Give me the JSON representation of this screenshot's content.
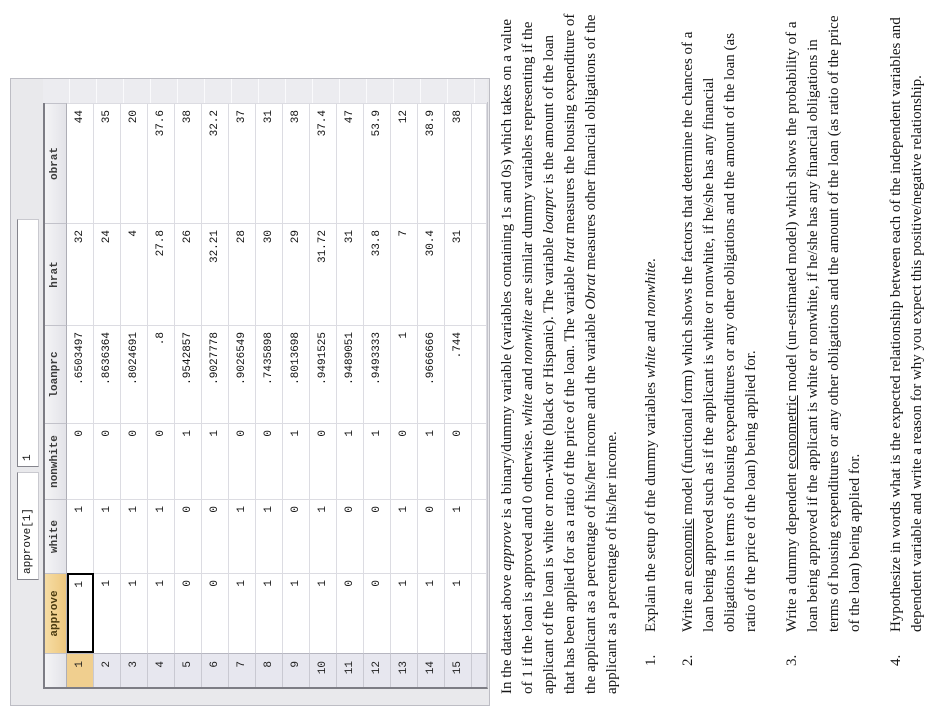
{
  "editor": {
    "cell_ref": "approve[1]",
    "cell_value": "1",
    "columns": [
      "approve",
      "white",
      "nonwhite",
      "loanprc",
      "hrat",
      "obrat"
    ],
    "rows": [
      {
        "n": "1",
        "cells": [
          "1",
          "1",
          "0",
          ".6503497",
          "32",
          "44"
        ]
      },
      {
        "n": "2",
        "cells": [
          "1",
          "1",
          "0",
          ".8636364",
          "24",
          "35"
        ]
      },
      {
        "n": "3",
        "cells": [
          "1",
          "1",
          "0",
          ".8024691",
          "4",
          "20"
        ]
      },
      {
        "n": "4",
        "cells": [
          "1",
          "1",
          "0",
          ".8",
          "27.8",
          "37.6"
        ]
      },
      {
        "n": "5",
        "cells": [
          "0",
          "0",
          "1",
          ".9542857",
          "26",
          "38"
        ]
      },
      {
        "n": "6",
        "cells": [
          "0",
          "0",
          "1",
          ".9027778",
          "32.21",
          "32.2"
        ]
      },
      {
        "n": "7",
        "cells": [
          "1",
          "1",
          "0",
          ".9026549",
          "28",
          "37"
        ]
      },
      {
        "n": "8",
        "cells": [
          "1",
          "1",
          "0",
          ".7435898",
          "30",
          "31"
        ]
      },
      {
        "n": "9",
        "cells": [
          "1",
          "0",
          "1",
          ".8013698",
          "29",
          "38"
        ]
      },
      {
        "n": "10",
        "cells": [
          "1",
          "1",
          "0",
          ".9491525",
          "31.72",
          "37.4"
        ]
      },
      {
        "n": "11",
        "cells": [
          "0",
          "0",
          "1",
          ".9489051",
          "31",
          "47"
        ]
      },
      {
        "n": "12",
        "cells": [
          "0",
          "0",
          "1",
          ".9493333",
          "33.8",
          "53.9"
        ]
      },
      {
        "n": "13",
        "cells": [
          "1",
          "1",
          "0",
          "1",
          "7",
          "12"
        ]
      },
      {
        "n": "14",
        "cells": [
          "1",
          "0",
          "1",
          ".9666666",
          "30.4",
          "38.9"
        ]
      },
      {
        "n": "15",
        "cells": [
          "1",
          "1",
          "0",
          ".744",
          "31",
          "38"
        ]
      }
    ],
    "colors": {
      "selection_highlight": "#f0cf8f",
      "gutter_background": "#e7e7ef",
      "grid_line": "#dcdce2"
    }
  },
  "document": {
    "intro": [
      {
        "t": "In the dataset above "
      },
      {
        "t": "approve",
        "i": true
      },
      {
        "t": " is a binary/dummy variable (variables containing 1s and 0s) which takes on a value of 1 if the loan is approved and 0 otherwise. "
      },
      {
        "t": "white",
        "i": true
      },
      {
        "t": " and "
      },
      {
        "t": "nonwhite",
        "i": true
      },
      {
        "t": " are similar dummy variables representing if the applicant of the loan is white or non-white (black or Hispanic). The variable "
      },
      {
        "t": "loanprc",
        "i": true
      },
      {
        "t": " is the amount of the loan that has been applied for as a ratio of the price of the loan. The variable "
      },
      {
        "t": "hrat",
        "i": true
      },
      {
        "t": " measures the housing expenditure of the applicant as a percentage of his/her income and the variable "
      },
      {
        "t": "Obrat",
        "i": true
      },
      {
        "t": " measures other financial obligations of the applicant as a percentage of his/her income."
      }
    ],
    "items": [
      {
        "number": "1.",
        "runs": [
          {
            "t": "Explain the setup of the dummy variables "
          },
          {
            "t": "white",
            "i": true
          },
          {
            "t": " and "
          },
          {
            "t": "nonwhite.",
            "i": true
          }
        ]
      },
      {
        "number": "2.",
        "runs": [
          {
            "t": "Write an "
          },
          {
            "t": "economic",
            "u": true
          },
          {
            "t": " model (functional form) which shows the factors that determine the chances of a loan being approved such as if the applicant is white or nonwhite, if he/she has any financial obligations in terms of housing expenditures or any other obligations and the amount of the loan (as ratio of the price of the loan) being applied for."
          }
        ]
      },
      {
        "number": "3.",
        "runs": [
          {
            "t": "Write a dummy dependent "
          },
          {
            "t": "econometric",
            "u": true
          },
          {
            "t": " model (un-estimated model) which shows the probability of a loan being approved if the applicant is white or nonwhite, if he/she has any financial obligations in terms of housing expenditures or any other obligations and the amount of the loan (as ratio of the price of the loan) being applied for."
          }
        ]
      },
      {
        "number": "4.",
        "runs": [
          {
            "t": "Hypothesize in words what is the expected relationship between each of the independent variables and dependent variable and write a reason for why you expect this positive/negative relationship."
          }
        ]
      }
    ]
  }
}
